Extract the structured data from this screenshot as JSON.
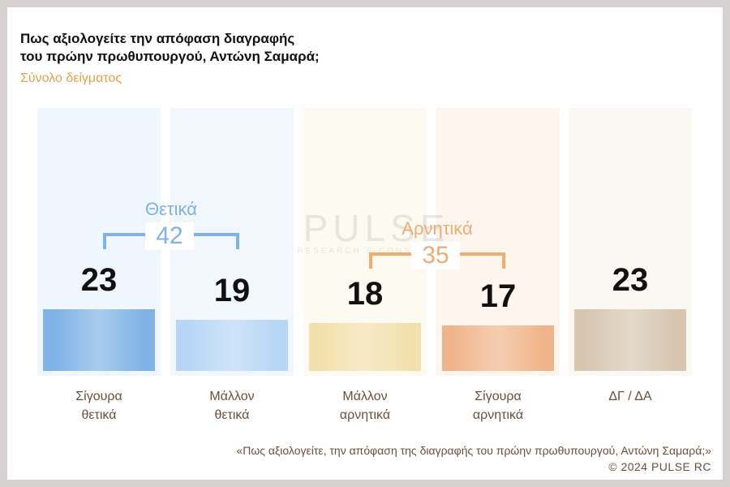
{
  "chart_data": {
    "type": "bar",
    "title": "Πως αξιολογείτε  την απόφαση διαγραφής του πρώην πρωθυπουργού, Αντώνη Σαμαρά;",
    "title_lines": [
      "Πως αξιολογείτε  την απόφαση διαγραφής",
      "του πρώην πρωθυπουργού, Αντώνη Σαμαρά;"
    ],
    "subtitle": "Σύνολο δείγματος",
    "categories": [
      {
        "line1": "Σίγουρα",
        "line2": "θετικά"
      },
      {
        "line1": "Μάλλον",
        "line2": "θετικά"
      },
      {
        "line1": "Μάλλον",
        "line2": "αρνητικά"
      },
      {
        "line1": "Σίγουρα",
        "line2": "αρνητικά"
      },
      {
        "line1": "ΔΓ / ΔΑ",
        "line2": ""
      }
    ],
    "values": [
      23,
      19,
      18,
      17,
      23
    ],
    "colors": [
      "#7fb2e6",
      "#b7d6f5",
      "#f2e0ac",
      "#f0b48a",
      "#d6c6b0"
    ],
    "groups": [
      {
        "label": "Θετικά",
        "total": 42,
        "color": "#7fb2e6"
      },
      {
        "label": "Αρνητικά",
        "total": 35,
        "color": "#efad72"
      }
    ]
  },
  "watermark": {
    "main": "PULSE",
    "sub": "RESEARCH & CONSULTING"
  },
  "footnote": "«Πως αξιολογείτε, την απόφαση της διαγραφής του πρώην πρωθυπουργού, Αντώνη Σαμαρά;»",
  "copyright": "©  2024  PULSE RC"
}
